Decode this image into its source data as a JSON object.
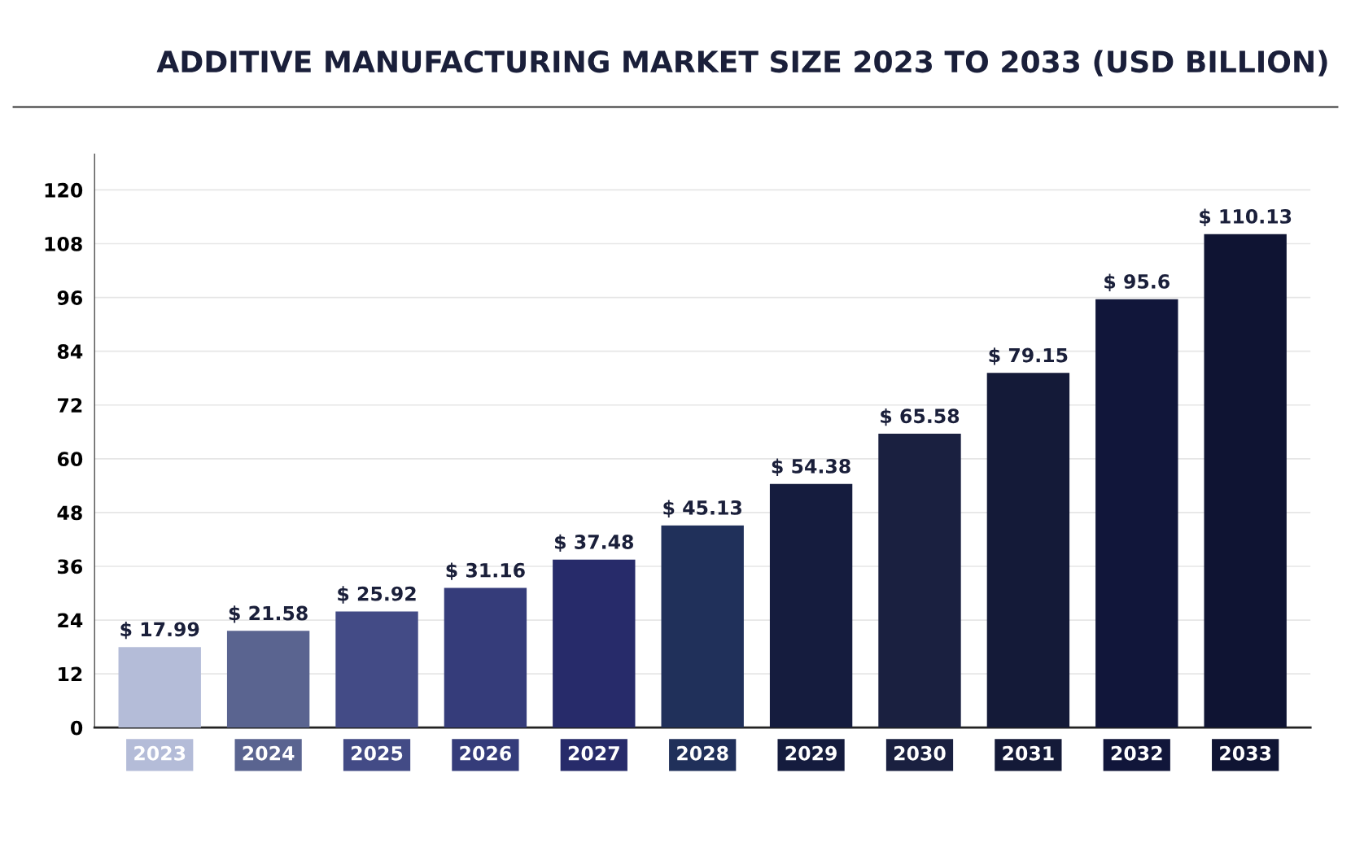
{
  "chart_data": {
    "type": "bar",
    "title": "ADDITIVE MANUFACTURING MARKET SIZE 2023 TO 2033 (USD BILLION)",
    "categories": [
      "2023",
      "2024",
      "2025",
      "2026",
      "2027",
      "2028",
      "2029",
      "2030",
      "2031",
      "2032",
      "2033"
    ],
    "values": [
      17.99,
      21.58,
      25.92,
      31.16,
      37.48,
      45.13,
      54.38,
      65.58,
      79.15,
      95.6,
      110.13
    ],
    "colors": [
      "#b4bcd8",
      "#5a6490",
      "#434b86",
      "#353c7a",
      "#272b6a",
      "#20305a",
      "#151c3e",
      "#1a2040",
      "#141a38",
      "#11163a",
      "#0f1433"
    ],
    "value_labels": [
      "$ 17.99",
      "$ 21.58",
      "$ 25.92",
      "$ 31.16",
      "$ 37.48",
      "$ 45.13",
      "$ 54.38",
      "$ 65.58",
      "$ 79.15",
      "$ 95.6",
      "$ 110.13"
    ],
    "ylim": [
      0,
      128
    ],
    "yticks": [
      0,
      12,
      24,
      36,
      48,
      60,
      72,
      84,
      96,
      108,
      120
    ],
    "grid": "y"
  }
}
